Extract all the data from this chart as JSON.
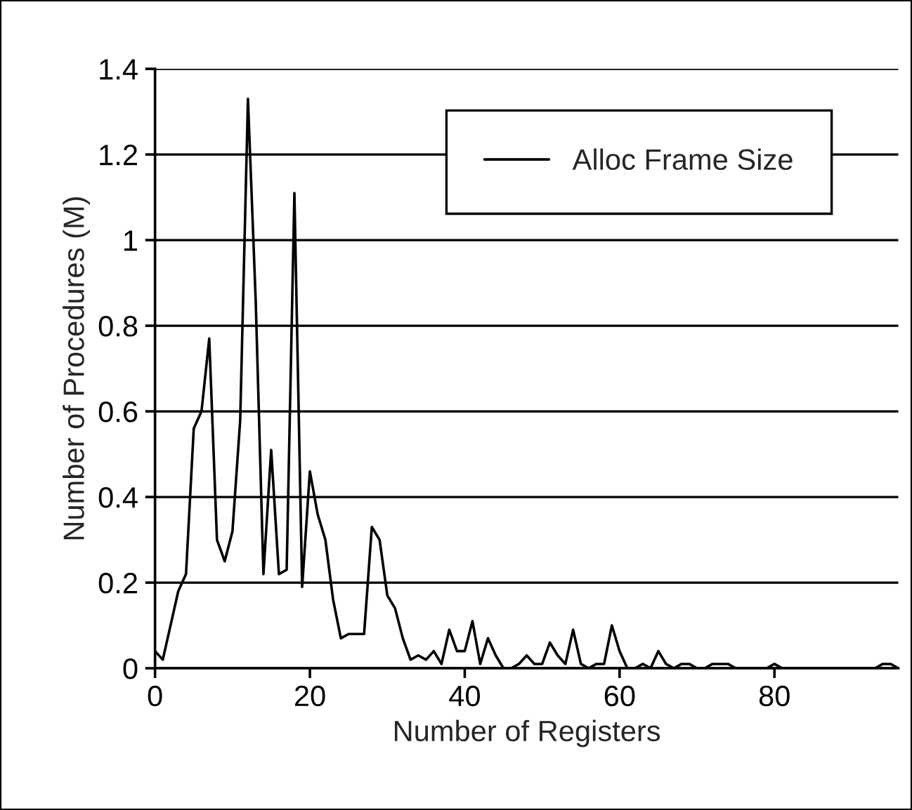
{
  "chart_data": {
    "type": "line",
    "xlabel": "Number of Registers",
    "ylabel": "Number of Procedures (M)",
    "x": [
      0,
      1,
      2,
      3,
      4,
      5,
      6,
      7,
      8,
      9,
      10,
      11,
      12,
      13,
      14,
      15,
      16,
      17,
      18,
      19,
      20,
      21,
      22,
      23,
      24,
      25,
      26,
      27,
      28,
      29,
      30,
      31,
      32,
      33,
      34,
      35,
      36,
      37,
      38,
      39,
      40,
      41,
      42,
      43,
      44,
      45,
      46,
      47,
      48,
      49,
      50,
      51,
      52,
      53,
      54,
      55,
      56,
      57,
      58,
      59,
      60,
      61,
      62,
      63,
      64,
      65,
      66,
      67,
      68,
      69,
      70,
      71,
      72,
      73,
      74,
      75,
      76,
      77,
      78,
      79,
      80,
      81,
      82,
      83,
      84,
      85,
      86,
      87,
      88,
      89,
      90,
      91,
      92,
      93,
      94,
      95,
      96
    ],
    "series": [
      {
        "name": "Alloc Frame Size",
        "color": "#000000",
        "values": [
          0.04,
          0.02,
          0.1,
          0.18,
          0.22,
          0.56,
          0.6,
          0.77,
          0.3,
          0.25,
          0.32,
          0.58,
          1.33,
          0.86,
          0.22,
          0.51,
          0.22,
          0.23,
          1.11,
          0.19,
          0.46,
          0.36,
          0.3,
          0.16,
          0.07,
          0.08,
          0.08,
          0.08,
          0.33,
          0.3,
          0.17,
          0.14,
          0.07,
          0.02,
          0.03,
          0.02,
          0.04,
          0.01,
          0.09,
          0.04,
          0.04,
          0.11,
          0.01,
          0.07,
          0.03,
          0,
          0,
          0.01,
          0.03,
          0.01,
          0.01,
          0.06,
          0.03,
          0.01,
          0.09,
          0.01,
          0,
          0.01,
          0.01,
          0.1,
          0.04,
          0,
          0,
          0.01,
          0,
          0.04,
          0.01,
          0,
          0.01,
          0.01,
          0,
          0,
          0.01,
          0.01,
          0.01,
          0,
          0,
          0,
          0,
          0,
          0.01,
          0,
          0,
          0,
          0,
          0,
          0,
          0,
          0,
          0,
          0,
          0,
          0,
          0,
          0.01,
          0.01,
          0
        ]
      }
    ],
    "xlim": [
      0,
      96
    ],
    "xticks": [
      0,
      20,
      40,
      60,
      80
    ],
    "ylim": [
      0,
      1.4
    ],
    "yticks": [
      0,
      0.2,
      0.4,
      0.6,
      0.8,
      1,
      1.2,
      1.4
    ],
    "grid": "y",
    "legend": "top right",
    "marker": "none",
    "line_style": "solid"
  }
}
